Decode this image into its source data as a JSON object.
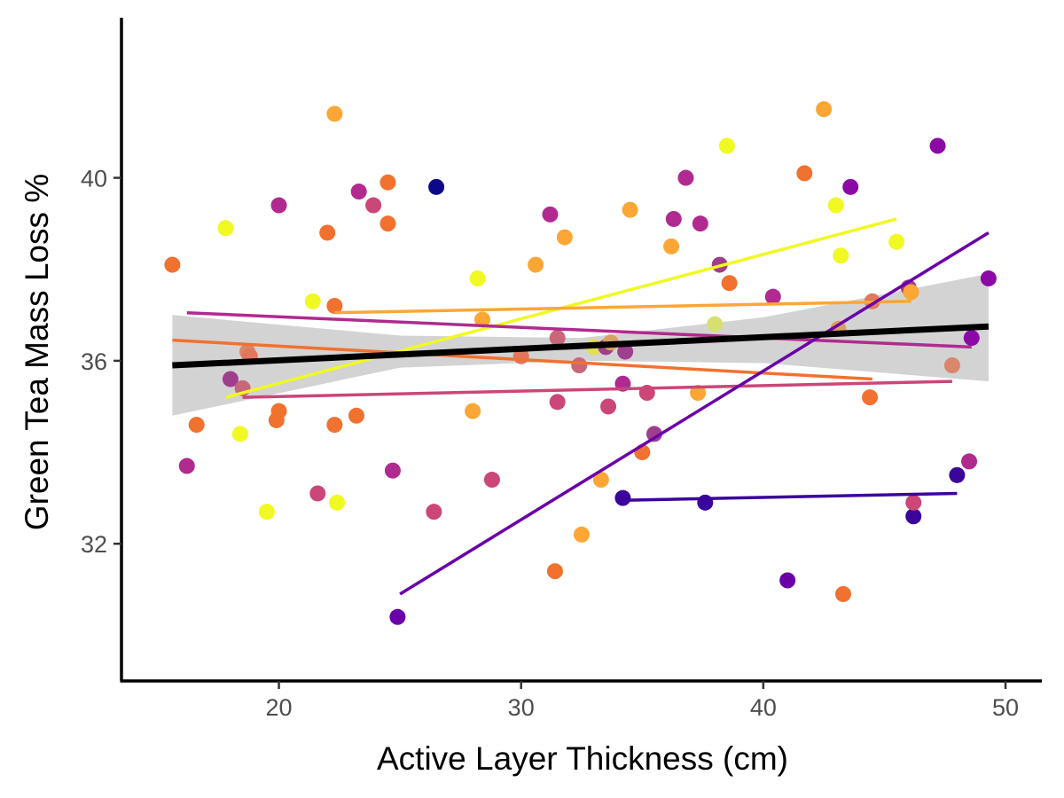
{
  "chart_data": {
    "type": "scatter",
    "xlabel": "Active Layer Thickness (cm)",
    "ylabel": "Green Tea Mass Loss %",
    "xlim": [
      13.5,
      51.5
    ],
    "ylim": [
      29.0,
      43.5
    ],
    "x_ticks": [
      20,
      30,
      40,
      50
    ],
    "y_ticks": [
      32,
      36,
      40
    ],
    "grid": false,
    "legend": "none",
    "points": [
      {
        "x": 15.6,
        "y": 38.1,
        "color": "#f1712f"
      },
      {
        "x": 16.2,
        "y": 33.7,
        "color": "#b02a8f"
      },
      {
        "x": 16.6,
        "y": 34.6,
        "color": "#f1712f"
      },
      {
        "x": 17.8,
        "y": 38.9,
        "color": "#f0f921"
      },
      {
        "x": 18.0,
        "y": 35.6,
        "color": "#9e3f8e"
      },
      {
        "x": 18.4,
        "y": 34.4,
        "color": "#f0f921"
      },
      {
        "x": 18.5,
        "y": 35.4,
        "color": "#c8677a"
      },
      {
        "x": 18.7,
        "y": 36.2,
        "color": "#d9866a"
      },
      {
        "x": 18.8,
        "y": 36.1,
        "color": "#e2765e"
      },
      {
        "x": 19.5,
        "y": 32.7,
        "color": "#f0f921"
      },
      {
        "x": 19.9,
        "y": 34.7,
        "color": "#f1712f"
      },
      {
        "x": 20.0,
        "y": 34.9,
        "color": "#f1712f"
      },
      {
        "x": 20.0,
        "y": 39.4,
        "color": "#b02a8f"
      },
      {
        "x": 21.4,
        "y": 37.3,
        "color": "#f0f921"
      },
      {
        "x": 21.6,
        "y": 33.1,
        "color": "#cb4679"
      },
      {
        "x": 22.0,
        "y": 38.8,
        "color": "#f1712f"
      },
      {
        "x": 22.3,
        "y": 41.4,
        "color": "#fca636"
      },
      {
        "x": 22.3,
        "y": 37.2,
        "color": "#f1712f"
      },
      {
        "x": 22.3,
        "y": 34.6,
        "color": "#f1712f"
      },
      {
        "x": 22.4,
        "y": 32.9,
        "color": "#f0f921"
      },
      {
        "x": 23.2,
        "y": 34.8,
        "color": "#f1712f"
      },
      {
        "x": 23.3,
        "y": 39.7,
        "color": "#b02a8f"
      },
      {
        "x": 23.9,
        "y": 39.4,
        "color": "#cb4679"
      },
      {
        "x": 24.5,
        "y": 39.9,
        "color": "#f1712f"
      },
      {
        "x": 24.5,
        "y": 39.0,
        "color": "#f1712f"
      },
      {
        "x": 24.7,
        "y": 33.6,
        "color": "#b02a8f"
      },
      {
        "x": 24.9,
        "y": 30.4,
        "color": "#6a00a8"
      },
      {
        "x": 26.4,
        "y": 32.7,
        "color": "#cb4679"
      },
      {
        "x": 26.5,
        "y": 39.8,
        "color": "#0d0887"
      },
      {
        "x": 28.0,
        "y": 34.9,
        "color": "#fca636"
      },
      {
        "x": 28.2,
        "y": 37.8,
        "color": "#f0f921"
      },
      {
        "x": 28.4,
        "y": 36.9,
        "color": "#fca636"
      },
      {
        "x": 28.8,
        "y": 33.4,
        "color": "#cb4679"
      },
      {
        "x": 30.0,
        "y": 36.1,
        "color": "#e2765e"
      },
      {
        "x": 30.6,
        "y": 38.1,
        "color": "#fca636"
      },
      {
        "x": 31.2,
        "y": 39.2,
        "color": "#b02a8f"
      },
      {
        "x": 31.4,
        "y": 31.4,
        "color": "#f1712f"
      },
      {
        "x": 31.5,
        "y": 35.1,
        "color": "#cb4679"
      },
      {
        "x": 31.5,
        "y": 36.5,
        "color": "#c8677a"
      },
      {
        "x": 31.8,
        "y": 38.7,
        "color": "#fca636"
      },
      {
        "x": 32.5,
        "y": 32.2,
        "color": "#fca636"
      },
      {
        "x": 32.4,
        "y": 35.9,
        "color": "#c8677a"
      },
      {
        "x": 33.0,
        "y": 36.3,
        "color": "#e0e050"
      },
      {
        "x": 33.3,
        "y": 33.4,
        "color": "#fca636"
      },
      {
        "x": 33.5,
        "y": 36.3,
        "color": "#9e3f8e"
      },
      {
        "x": 33.6,
        "y": 35.0,
        "color": "#cb4679"
      },
      {
        "x": 33.7,
        "y": 36.4,
        "color": "#d9a05f"
      },
      {
        "x": 34.2,
        "y": 33.0,
        "color": "#3b049a"
      },
      {
        "x": 34.2,
        "y": 35.5,
        "color": "#b02a8f"
      },
      {
        "x": 34.3,
        "y": 36.2,
        "color": "#9e3f8e"
      },
      {
        "x": 34.5,
        "y": 39.3,
        "color": "#fca636"
      },
      {
        "x": 35.0,
        "y": 34.0,
        "color": "#f1712f"
      },
      {
        "x": 35.2,
        "y": 35.3,
        "color": "#cb4679"
      },
      {
        "x": 35.5,
        "y": 34.4,
        "color": "#9e3f8e"
      },
      {
        "x": 36.2,
        "y": 38.5,
        "color": "#fca636"
      },
      {
        "x": 36.3,
        "y": 39.1,
        "color": "#b02a8f"
      },
      {
        "x": 36.8,
        "y": 40.0,
        "color": "#b02a8f"
      },
      {
        "x": 37.3,
        "y": 35.3,
        "color": "#fca636"
      },
      {
        "x": 37.4,
        "y": 39.0,
        "color": "#b02a8f"
      },
      {
        "x": 37.6,
        "y": 32.9,
        "color": "#3b049a"
      },
      {
        "x": 38.0,
        "y": 36.8,
        "color": "#d6e070"
      },
      {
        "x": 38.2,
        "y": 38.1,
        "color": "#9e3f8e"
      },
      {
        "x": 38.5,
        "y": 40.7,
        "color": "#f0f921"
      },
      {
        "x": 38.6,
        "y": 37.7,
        "color": "#f1712f"
      },
      {
        "x": 40.4,
        "y": 37.4,
        "color": "#b02a8f"
      },
      {
        "x": 41.0,
        "y": 31.2,
        "color": "#6a00a8"
      },
      {
        "x": 41.7,
        "y": 40.1,
        "color": "#f1712f"
      },
      {
        "x": 42.5,
        "y": 41.5,
        "color": "#fca636"
      },
      {
        "x": 43.0,
        "y": 39.4,
        "color": "#f0f921"
      },
      {
        "x": 43.1,
        "y": 36.7,
        "color": "#d9a05f"
      },
      {
        "x": 43.2,
        "y": 38.3,
        "color": "#f0f921"
      },
      {
        "x": 43.3,
        "y": 30.9,
        "color": "#f1712f"
      },
      {
        "x": 43.6,
        "y": 39.8,
        "color": "#8b0aa5"
      },
      {
        "x": 44.4,
        "y": 35.2,
        "color": "#f1712f"
      },
      {
        "x": 44.5,
        "y": 37.3,
        "color": "#e2765e"
      },
      {
        "x": 45.5,
        "y": 38.6,
        "color": "#f0f921"
      },
      {
        "x": 46.0,
        "y": 37.6,
        "color": "#9e3f8e"
      },
      {
        "x": 46.1,
        "y": 37.5,
        "color": "#fca636"
      },
      {
        "x": 46.2,
        "y": 32.6,
        "color": "#3b049a"
      },
      {
        "x": 46.2,
        "y": 32.9,
        "color": "#cb4679"
      },
      {
        "x": 47.2,
        "y": 40.7,
        "color": "#8b0aa5"
      },
      {
        "x": 47.8,
        "y": 35.9,
        "color": "#d9866a"
      },
      {
        "x": 48.0,
        "y": 33.5,
        "color": "#3b049a"
      },
      {
        "x": 48.5,
        "y": 33.8,
        "color": "#b02a8f"
      },
      {
        "x": 48.6,
        "y": 36.5,
        "color": "#8b0aa5"
      },
      {
        "x": 49.3,
        "y": 37.8,
        "color": "#8b0aa5"
      }
    ],
    "group_fits": [
      {
        "x1": 17.8,
        "y1": 35.2,
        "x2": 45.5,
        "y2": 39.1,
        "color": "#f0f921"
      },
      {
        "x1": 22.3,
        "y1": 37.05,
        "x2": 46.1,
        "y2": 37.3,
        "color": "#fca636"
      },
      {
        "x1": 15.6,
        "y1": 36.45,
        "x2": 44.5,
        "y2": 35.6,
        "color": "#f1712f"
      },
      {
        "x1": 16.2,
        "y1": 37.05,
        "x2": 48.6,
        "y2": 36.3,
        "color": "#b02a8f"
      },
      {
        "x1": 18.5,
        "y1": 35.2,
        "x2": 47.8,
        "y2": 35.55,
        "color": "#cb4679"
      },
      {
        "x1": 25.0,
        "y1": 30.9,
        "x2": 49.3,
        "y2": 38.8,
        "color": "#6a00a8"
      },
      {
        "x1": 34.2,
        "y1": 32.95,
        "x2": 48.0,
        "y2": 33.1,
        "color": "#3b049a"
      }
    ],
    "overall_fit": {
      "x1": 15.6,
      "y1": 35.9,
      "x2": 49.3,
      "y2": 36.75,
      "color": "#000000",
      "ci_band": [
        {
          "x": 15.6,
          "upper": 37.0,
          "lower": 34.8
        },
        {
          "x": 25.0,
          "upper": 36.55,
          "lower": 35.85
        },
        {
          "x": 32.5,
          "upper": 36.5,
          "lower": 36.0
        },
        {
          "x": 40.0,
          "upper": 36.95,
          "lower": 35.95
        },
        {
          "x": 49.3,
          "upper": 37.9,
          "lower": 35.55
        }
      ],
      "ci_color": "#d3d3d3"
    }
  }
}
